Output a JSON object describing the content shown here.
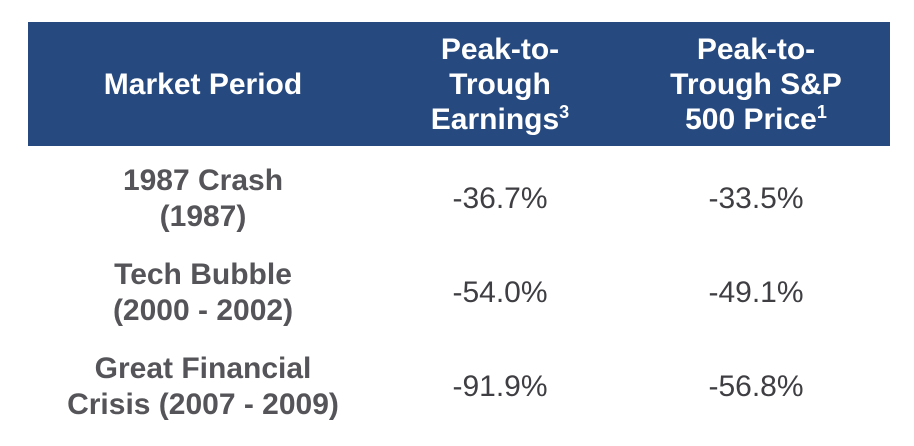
{
  "header": {
    "period": "Market Period",
    "earnings_line1": "Peak-to-",
    "earnings_line2": "Trough",
    "earnings_line3": "Earnings",
    "earnings_sup": "3",
    "price_line1": "Peak-to-",
    "price_line2": "Trough S&P",
    "price_line3": "500 Price",
    "price_sup": "1"
  },
  "rows": [
    {
      "period_line1": "1987 Crash",
      "period_line2": "(1987)",
      "earnings": "-36.7%",
      "price": "-33.5%"
    },
    {
      "period_line1": "Tech Bubble",
      "period_line2": "(2000 - 2002)",
      "earnings": "-54.0%",
      "price": "-49.1%"
    },
    {
      "period_line1": "Great Financial",
      "period_line2": "Crisis (2007 - 2009)",
      "earnings": "-91.9%",
      "price": "-56.8%"
    }
  ],
  "colors": {
    "header_bg": "#26497f",
    "header_text": "#ffffff",
    "body_text": "#555559"
  }
}
